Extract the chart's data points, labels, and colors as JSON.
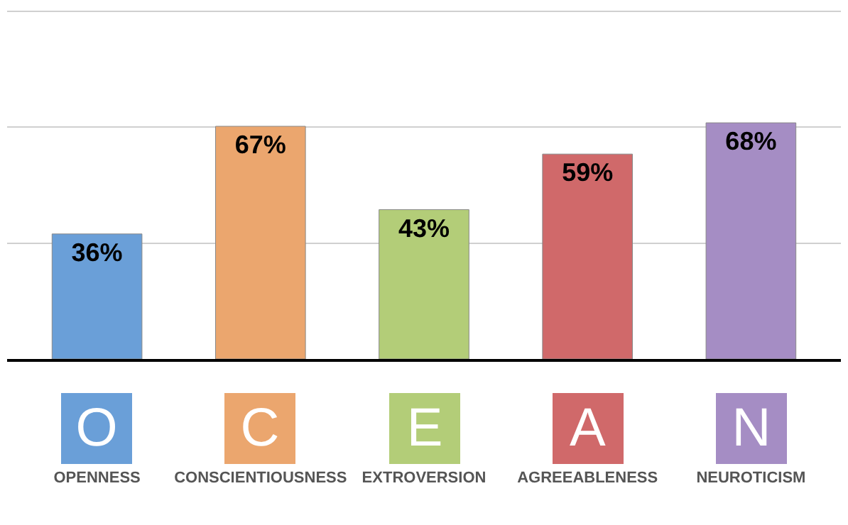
{
  "chart_data": {
    "type": "bar",
    "categories": [
      "OPENNESS",
      "CONSCIENTIOUSNESS",
      "EXTROVERSION",
      "AGREEABLENESS",
      "NEUROTICISM"
    ],
    "values": [
      36,
      67,
      43,
      59,
      68
    ],
    "value_labels": [
      "36%",
      "67%",
      "43%",
      "59%",
      "68%"
    ],
    "colors": [
      "#6a9fd8",
      "#eba66e",
      "#b3cd78",
      "#d0696a",
      "#a58dc4"
    ],
    "ylim": [
      0,
      100.5
    ],
    "yticks": [
      {
        "value": 33.3,
        "label": null
      },
      {
        "value": 66.7,
        "label": null
      },
      {
        "value": 100,
        "label": null
      }
    ],
    "grid": "y",
    "tick_labels": "x",
    "legend": false,
    "annotations": [
      "O",
      "C",
      "E",
      "A",
      "N"
    ]
  }
}
